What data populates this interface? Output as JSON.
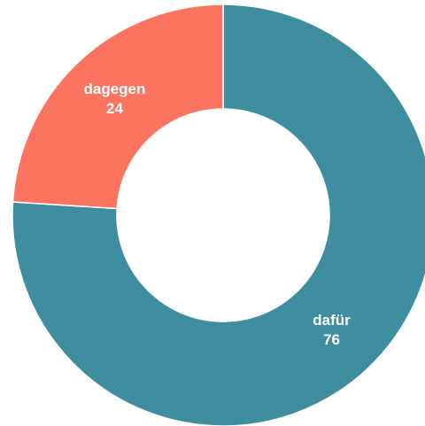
{
  "chart_data": {
    "type": "donut",
    "categories": [
      "dafür",
      "dagegen"
    ],
    "values": [
      76,
      24
    ],
    "colors": [
      "#3f8ea0",
      "#fb7460"
    ]
  }
}
